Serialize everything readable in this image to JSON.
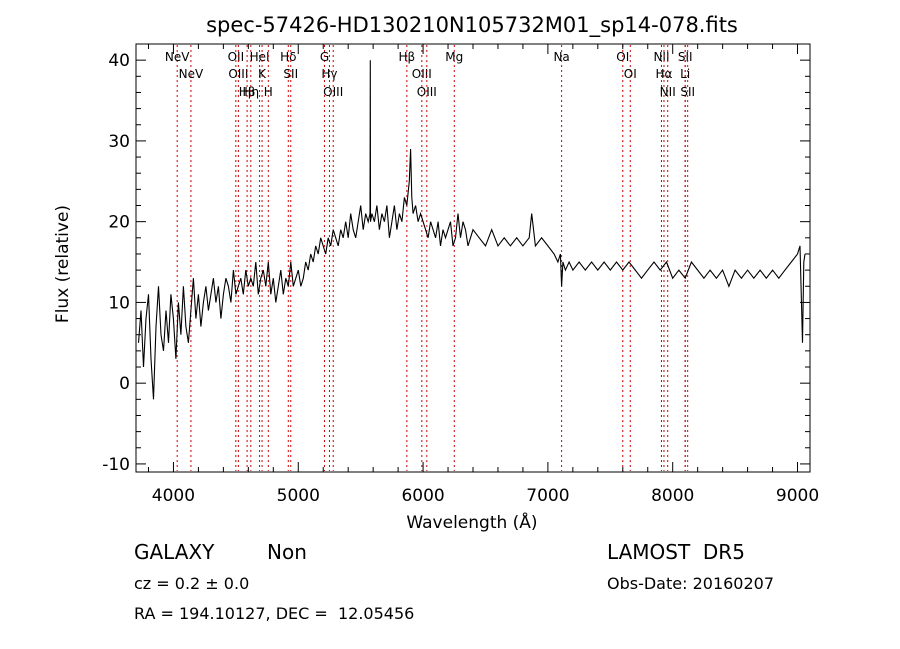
{
  "chart_data": {
    "type": "line",
    "title": "spec-57426-HD130210N105732M01_sp14-078.fits",
    "xlabel": "Wavelength (Å)",
    "ylabel": "Flux (relative)",
    "xlim": [
      3700,
      9100
    ],
    "ylim": [
      -11,
      42
    ],
    "xticks": [
      4000,
      5000,
      6000,
      7000,
      8000,
      9000
    ],
    "yticks": [
      -10,
      0,
      10,
      20,
      30,
      40
    ],
    "grid": false,
    "line_markers": [
      {
        "label": "NeV",
        "x": 4030
      },
      {
        "label": "NeV",
        "x": 4140
      },
      {
        "label": "OII",
        "x": 4500
      },
      {
        "label": "OIII",
        "x": 4520
      },
      {
        "label": "Hβ",
        "x": 4590
      },
      {
        "label": "Hη",
        "x": 4620
      },
      {
        "label": "HeI",
        "x": 4690
      },
      {
        "label": "K",
        "x": 4710
      },
      {
        "label": "H",
        "x": 4760
      },
      {
        "label": "Hδ",
        "x": 4920
      },
      {
        "label": "SII",
        "x": 4940
      },
      {
        "label": "G",
        "x": 5210
      },
      {
        "label": "Hγ",
        "x": 5250
      },
      {
        "label": "OIII",
        "x": 5280
      },
      {
        "label": "Hβ",
        "x": 5870
      },
      {
        "label": "OIII",
        "x": 5990
      },
      {
        "label": "OIII",
        "x": 6030
      },
      {
        "label": "Mg",
        "x": 6250
      },
      {
        "label": "Na",
        "x": 7110
      },
      {
        "label": "OI",
        "x": 7600
      },
      {
        "label": "OI",
        "x": 7660
      },
      {
        "label": "NII",
        "x": 7910
      },
      {
        "label": "Hα",
        "x": 7930
      },
      {
        "label": "NII",
        "x": 7960
      },
      {
        "label": "SII",
        "x": 8100
      },
      {
        "label": "SII",
        "x": 8120
      },
      {
        "label": "Li",
        "x": 8100
      }
    ],
    "series": [
      {
        "x": [
          3720,
          3740,
          3760,
          3780,
          3800,
          3820,
          3840,
          3860,
          3880,
          3900,
          3920,
          3940,
          3960,
          3980,
          4000,
          4020,
          4040,
          4060,
          4080,
          4100,
          4120,
          4140,
          4160,
          4180,
          4200,
          4220,
          4240,
          4260,
          4280,
          4300,
          4320,
          4340,
          4360,
          4380,
          4400,
          4420,
          4440,
          4460,
          4480,
          4500,
          4520,
          4540,
          4560,
          4580,
          4600,
          4620,
          4640,
          4660,
          4680,
          4700,
          4720,
          4740,
          4760,
          4780,
          4800,
          4820,
          4840,
          4860,
          4880,
          4900,
          4920,
          4940,
          4960,
          4980,
          5000,
          5020,
          5040,
          5060,
          5080,
          5100,
          5120,
          5140,
          5160,
          5180,
          5200,
          5220,
          5240,
          5260,
          5280,
          5300,
          5320,
          5340,
          5360,
          5380,
          5400,
          5420,
          5440,
          5460,
          5480,
          5500,
          5520,
          5540,
          5560,
          5575,
          5577,
          5579,
          5590,
          5610,
          5630,
          5650,
          5670,
          5690,
          5710,
          5730,
          5750,
          5770,
          5790,
          5810,
          5830,
          5850,
          5870,
          5890,
          5900,
          5910,
          5920,
          5940,
          5960,
          5980,
          6000,
          6020,
          6040,
          6060,
          6080,
          6100,
          6120,
          6140,
          6160,
          6180,
          6200,
          6220,
          6240,
          6260,
          6280,
          6300,
          6320,
          6340,
          6360,
          6380,
          6400,
          6450,
          6500,
          6550,
          6600,
          6650,
          6700,
          6750,
          6800,
          6850,
          6870,
          6900,
          6950,
          7000,
          7050,
          7080,
          7100,
          7110,
          7120,
          7140,
          7170,
          7200,
          7250,
          7300,
          7350,
          7400,
          7450,
          7500,
          7550,
          7600,
          7650,
          7700,
          7750,
          7800,
          7850,
          7900,
          7950,
          8000,
          8050,
          8100,
          8150,
          8200,
          8250,
          8300,
          8350,
          8400,
          8450,
          8500,
          8550,
          8600,
          8650,
          8700,
          8750,
          8800,
          8850,
          8900,
          8950,
          9000,
          9020,
          9040,
          9050,
          9060
        ],
        "y": [
          5,
          9,
          2,
          8,
          11,
          3,
          -2,
          7,
          12,
          6,
          4,
          9,
          5,
          11,
          8,
          3,
          10,
          6,
          12,
          7,
          5,
          9,
          13,
          8,
          11,
          7,
          10,
          12,
          9,
          11,
          13,
          10,
          12,
          8,
          11,
          13,
          12,
          10,
          14,
          11,
          12,
          13,
          11,
          14,
          12,
          13,
          12,
          15,
          11,
          13,
          14,
          12,
          15,
          11,
          13,
          10,
          12,
          14,
          11,
          13,
          12,
          15,
          12,
          13,
          14,
          12,
          13,
          15,
          14,
          16,
          15,
          17,
          16,
          18,
          17,
          16,
          18,
          17,
          19,
          18,
          17,
          19,
          18,
          20,
          18,
          21,
          19,
          18,
          20,
          22,
          19,
          21,
          20,
          21,
          40,
          20,
          21,
          20,
          22,
          19,
          21,
          20,
          22,
          18,
          20,
          22,
          19,
          21,
          20,
          23,
          22,
          25,
          29,
          23,
          21,
          22,
          20,
          21,
          20,
          19,
          18,
          20,
          19,
          18,
          20,
          17,
          19,
          18,
          19,
          20,
          17,
          18,
          21,
          18,
          20,
          19,
          17,
          18,
          19,
          18,
          17,
          19,
          17,
          18,
          17,
          18,
          17,
          18,
          21,
          17,
          18,
          17,
          16,
          15,
          16,
          12,
          15,
          14,
          15,
          14,
          15,
          14,
          15,
          14,
          15,
          14,
          15,
          14,
          15,
          14,
          13,
          14,
          15,
          14,
          15,
          13,
          14,
          13,
          15,
          14,
          13,
          14,
          13,
          14,
          12,
          14,
          13,
          14,
          13,
          14,
          13,
          14,
          13,
          14,
          15,
          16,
          17,
          5,
          15,
          16
        ]
      }
    ]
  },
  "info": {
    "object_class": "GALAXY",
    "subclass": "Non",
    "survey": "LAMOST  DR5",
    "redshift": "cz = 0.2 ± 0.0",
    "obs_date": "Obs-Date: 20160207",
    "coords": "RA = 194.10127, DEC =  12.05456"
  }
}
